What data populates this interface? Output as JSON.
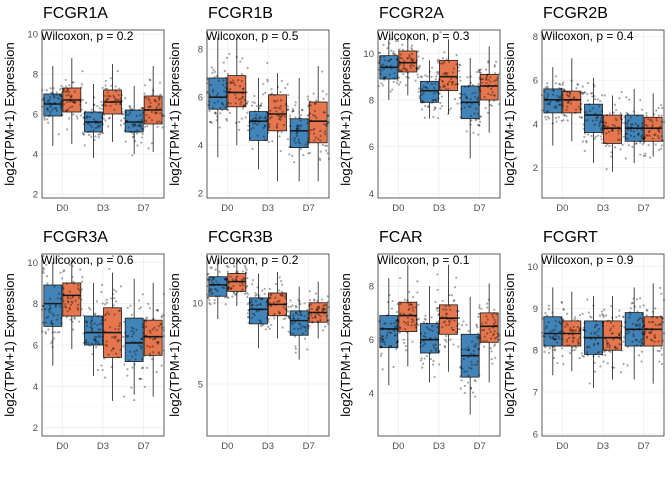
{
  "colors": {
    "D0_box": "#2f77b0",
    "treated_box": "#e2673a"
  },
  "chart_data": [
    {
      "type": "boxplot",
      "title": "FCGR1A",
      "ylabel": "log2(TPM+1) Expression",
      "categories": [
        "D0",
        "D3",
        "D7"
      ],
      "ylim": [
        1.8,
        10.2
      ],
      "yticks": [
        2,
        4,
        6,
        8,
        10
      ],
      "annotation": "Wilcoxon, p = 0.2",
      "groups": [
        [
          {
            "q1": 5.9,
            "median": 6.5,
            "q3": 7.0,
            "low": 4.4,
            "high": 8.4
          },
          {
            "q1": 6.1,
            "median": 6.7,
            "q3": 7.3,
            "low": 4.5,
            "high": 8.8
          }
        ],
        [
          {
            "q1": 5.1,
            "median": 5.6,
            "q3": 6.1,
            "low": 3.8,
            "high": 7.5
          },
          {
            "q1": 6.0,
            "median": 6.6,
            "q3": 7.2,
            "low": 4.6,
            "high": 8.5
          }
        ],
        [
          {
            "q1": 5.1,
            "median": 5.6,
            "q3": 6.2,
            "low": 4.0,
            "high": 7.4
          },
          {
            "q1": 5.5,
            "median": 6.2,
            "q3": 6.9,
            "low": 4.1,
            "high": 8.4
          }
        ]
      ]
    },
    {
      "type": "boxplot",
      "title": "FCGR1B",
      "ylabel": "log2(TPM+1) Expression",
      "categories": [
        "D0",
        "D3",
        "D7"
      ],
      "ylim": [
        1.8,
        8.8
      ],
      "yticks": [
        2,
        4,
        6,
        8
      ],
      "annotation": "Wilcoxon, p = 0.5",
      "groups": [
        [
          {
            "q1": 5.5,
            "median": 6.0,
            "q3": 6.8,
            "low": 3.5,
            "high": 8.5
          },
          {
            "q1": 5.6,
            "median": 6.2,
            "q3": 6.9,
            "low": 4.0,
            "high": 8.5
          }
        ],
        [
          {
            "q1": 4.2,
            "median": 5.0,
            "q3": 5.4,
            "low": 3.0,
            "high": 6.8
          },
          {
            "q1": 4.6,
            "median": 5.3,
            "q3": 6.1,
            "low": 2.5,
            "high": 7.0
          }
        ],
        [
          {
            "q1": 3.9,
            "median": 4.6,
            "q3": 5.1,
            "low": 2.5,
            "high": 6.8
          },
          {
            "q1": 4.1,
            "median": 5.0,
            "q3": 5.8,
            "low": 2.5,
            "high": 7.3
          }
        ]
      ]
    },
    {
      "type": "boxplot",
      "title": "FCGR2A",
      "ylabel": "log2(TPM+1) Expression",
      "categories": [
        "D0",
        "D3",
        "D7"
      ],
      "ylim": [
        3.8,
        11.0
      ],
      "yticks": [
        4,
        6,
        8,
        10
      ],
      "annotation": "Wilcoxon, p = 0.3",
      "groups": [
        [
          {
            "q1": 8.9,
            "median": 9.4,
            "q3": 9.9,
            "low": 8.0,
            "high": 10.6
          },
          {
            "q1": 9.2,
            "median": 9.6,
            "q3": 10.1,
            "low": 8.2,
            "high": 10.8
          }
        ],
        [
          {
            "q1": 7.9,
            "median": 8.4,
            "q3": 8.8,
            "low": 7.2,
            "high": 9.7
          },
          {
            "q1": 8.4,
            "median": 9.0,
            "q3": 9.7,
            "low": 7.4,
            "high": 10.6
          }
        ],
        [
          {
            "q1": 7.2,
            "median": 7.9,
            "q3": 8.6,
            "low": 5.5,
            "high": 9.8
          },
          {
            "q1": 8.0,
            "median": 8.6,
            "q3": 9.1,
            "low": 6.6,
            "high": 10.3
          }
        ]
      ]
    },
    {
      "type": "boxplot",
      "title": "FCGR2B",
      "ylabel": "log2(TPM+1) Expression",
      "categories": [
        "D0",
        "D3",
        "D7"
      ],
      "ylim": [
        0.6,
        8.3
      ],
      "yticks": [
        2,
        4,
        6,
        8
      ],
      "annotation": "Wilcoxon, p = 0.4",
      "groups": [
        [
          {
            "q1": 4.5,
            "median": 5.1,
            "q3": 5.6,
            "low": 3.0,
            "high": 6.6
          },
          {
            "q1": 4.5,
            "median": 5.1,
            "q3": 5.5,
            "low": 3.2,
            "high": 7.0
          }
        ],
        [
          {
            "q1": 3.6,
            "median": 4.4,
            "q3": 4.9,
            "low": 2.2,
            "high": 6.1
          },
          {
            "q1": 3.1,
            "median": 3.8,
            "q3": 4.4,
            "low": 1.8,
            "high": 5.3
          }
        ],
        [
          {
            "q1": 3.2,
            "median": 3.8,
            "q3": 4.4,
            "low": 2.2,
            "high": 5.6
          },
          {
            "q1": 3.2,
            "median": 3.8,
            "q3": 4.3,
            "low": 2.5,
            "high": 5.4
          }
        ]
      ]
    },
    {
      "type": "boxplot",
      "title": "FCGR3A",
      "ylabel": "log2(TPM+1) Expression",
      "categories": [
        "D0",
        "D3",
        "D7"
      ],
      "ylim": [
        1.6,
        10.4
      ],
      "yticks": [
        2,
        4,
        6,
        8,
        10
      ],
      "annotation": "Wilcoxon, p = 0.6",
      "groups": [
        [
          {
            "q1": 6.9,
            "median": 8.0,
            "q3": 8.9,
            "low": 5.0,
            "high": 10.0
          },
          {
            "q1": 7.4,
            "median": 8.4,
            "q3": 9.0,
            "low": 5.8,
            "high": 10.1
          }
        ],
        [
          {
            "q1": 6.0,
            "median": 6.6,
            "q3": 7.4,
            "low": 4.5,
            "high": 9.0
          },
          {
            "q1": 5.4,
            "median": 6.6,
            "q3": 7.8,
            "low": 3.3,
            "high": 9.5
          }
        ],
        [
          {
            "q1": 5.2,
            "median": 6.1,
            "q3": 7.3,
            "low": 3.6,
            "high": 9.2
          },
          {
            "q1": 5.5,
            "median": 6.4,
            "q3": 7.2,
            "low": 3.5,
            "high": 9.0
          }
        ]
      ]
    },
    {
      "type": "boxplot",
      "title": "FCGR3B",
      "ylabel": "log2(TPM+1) Expression",
      "categories": [
        "D0",
        "D3",
        "D7"
      ],
      "ylim": [
        1.8,
        13.0
      ],
      "yticks": [
        5,
        10
      ],
      "annotation": "Wilcoxon, p = 0.2",
      "groups": [
        [
          {
            "q1": 10.4,
            "median": 11.1,
            "q3": 11.6,
            "low": 9.0,
            "high": 12.7
          },
          {
            "q1": 10.7,
            "median": 11.3,
            "q3": 11.8,
            "low": 9.8,
            "high": 12.7
          }
        ],
        [
          {
            "q1": 8.7,
            "median": 9.6,
            "q3": 10.3,
            "low": 7.2,
            "high": 11.8
          },
          {
            "q1": 9.2,
            "median": 9.9,
            "q3": 10.6,
            "low": 7.8,
            "high": 11.9
          }
        ],
        [
          {
            "q1": 8.0,
            "median": 8.9,
            "q3": 9.5,
            "low": 6.5,
            "high": 11.0
          },
          {
            "q1": 8.8,
            "median": 9.4,
            "q3": 10.0,
            "low": 7.8,
            "high": 11.3
          }
        ]
      ]
    },
    {
      "type": "boxplot",
      "title": "FCAR",
      "ylabel": "log2(TPM+1) Expression",
      "categories": [
        "D0",
        "D3",
        "D7"
      ],
      "ylim": [
        2.4,
        9.2
      ],
      "yticks": [
        4,
        6,
        8
      ],
      "annotation": "Wilcoxon, p = 0.1",
      "groups": [
        [
          {
            "q1": 5.7,
            "median": 6.4,
            "q3": 6.9,
            "low": 4.3,
            "high": 8.3
          },
          {
            "q1": 6.3,
            "median": 6.9,
            "q3": 7.4,
            "low": 5.0,
            "high": 8.8
          }
        ],
        [
          {
            "q1": 5.5,
            "median": 6.0,
            "q3": 6.6,
            "low": 4.4,
            "high": 8.0
          },
          {
            "q1": 6.2,
            "median": 6.8,
            "q3": 7.3,
            "low": 4.8,
            "high": 8.8
          }
        ],
        [
          {
            "q1": 4.6,
            "median": 5.4,
            "q3": 6.2,
            "low": 3.2,
            "high": 7.6
          },
          {
            "q1": 5.9,
            "median": 6.5,
            "q3": 7.0,
            "low": 4.4,
            "high": 8.1
          }
        ]
      ]
    },
    {
      "type": "boxplot",
      "title": "FCGRT",
      "ylabel": "log2(TPM+1) Expression",
      "categories": [
        "D0",
        "D3",
        "D7"
      ],
      "ylim": [
        5.95,
        10.3
      ],
      "yticks": [
        6,
        7,
        8,
        9,
        10
      ],
      "annotation": "Wilcoxon, p = 0.9",
      "groups": [
        [
          {
            "q1": 8.1,
            "median": 8.4,
            "q3": 8.8,
            "low": 7.4,
            "high": 9.5
          },
          {
            "q1": 8.1,
            "median": 8.4,
            "q3": 8.7,
            "low": 7.5,
            "high": 9.4
          }
        ],
        [
          {
            "q1": 7.9,
            "median": 8.3,
            "q3": 8.7,
            "low": 7.1,
            "high": 9.3
          },
          {
            "q1": 8.0,
            "median": 8.3,
            "q3": 8.7,
            "low": 7.3,
            "high": 9.3
          }
        ],
        [
          {
            "q1": 8.1,
            "median": 8.5,
            "q3": 8.9,
            "low": 7.3,
            "high": 9.5
          },
          {
            "q1": 8.1,
            "median": 8.5,
            "q3": 8.8,
            "low": 7.2,
            "high": 9.6
          }
        ]
      ]
    }
  ]
}
